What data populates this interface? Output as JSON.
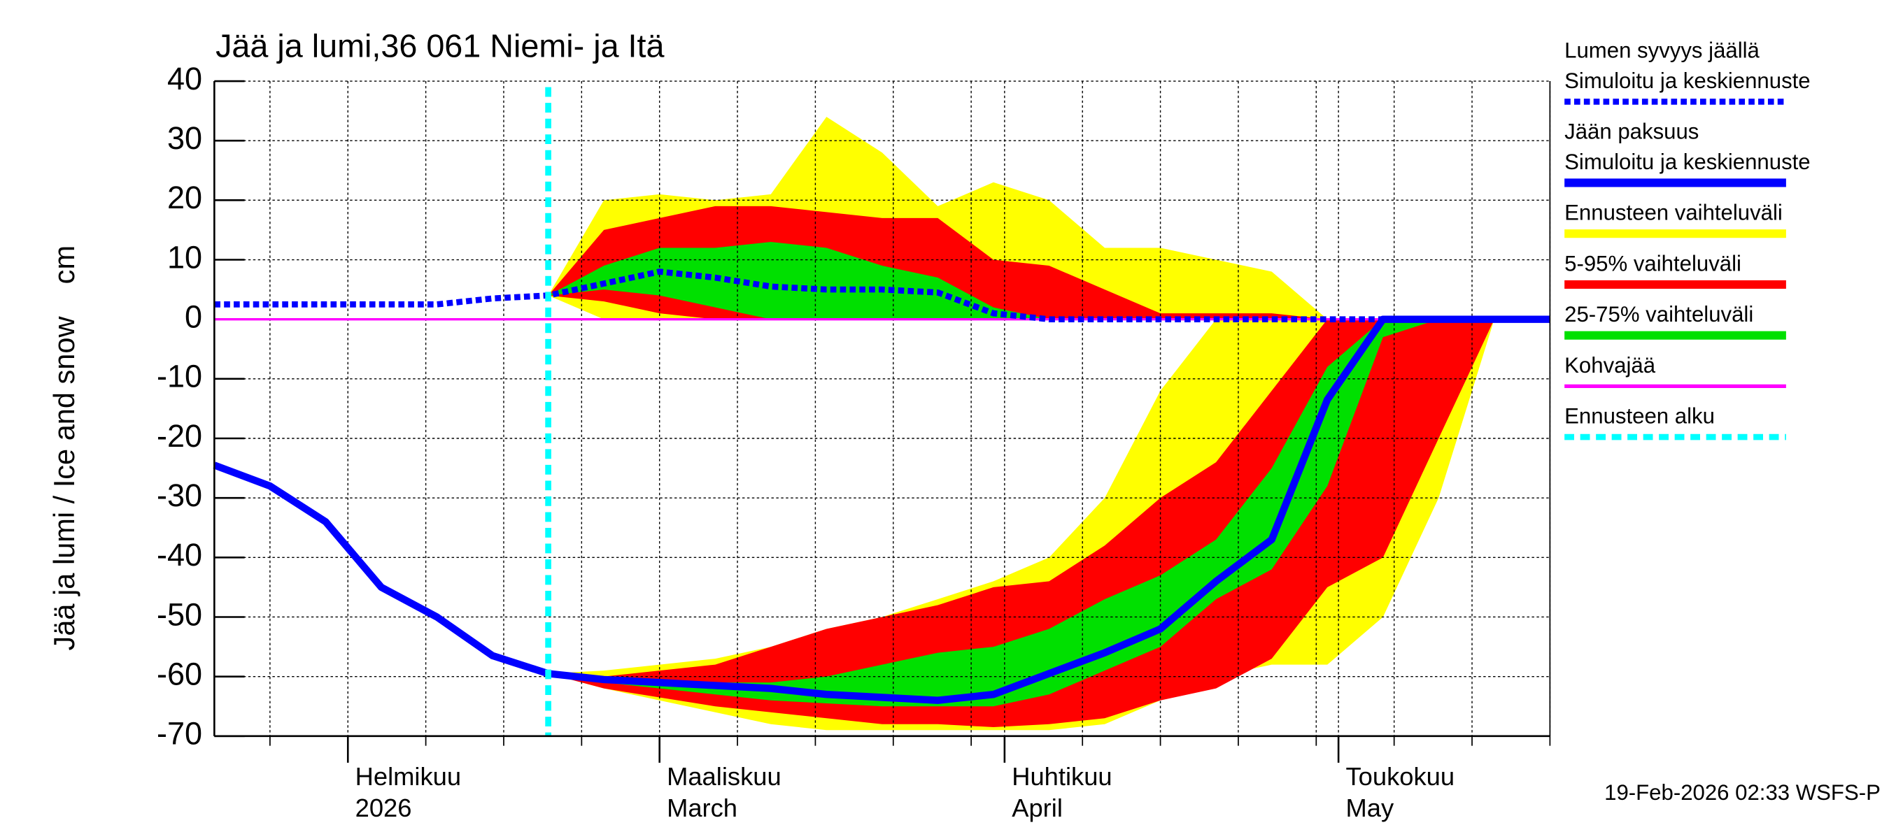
{
  "chart_data": {
    "type": "area",
    "title": "Jää ja lumi,36 061 Niemi- ja Itä",
    "ylabel": "Jää ja lumi / Ice and snow    cm",
    "footer": "19-Feb-2026 02:33 WSFS-P",
    "ylim": [
      -70,
      40
    ],
    "yticks": [
      40,
      30,
      20,
      10,
      0,
      -10,
      -20,
      -30,
      -40,
      -50,
      -60,
      -70
    ],
    "xlim": [
      0,
      120
    ],
    "xticks": [
      {
        "value": 12,
        "label": [
          "Helmikuu",
          "2026"
        ]
      },
      {
        "value": 40,
        "label": [
          "Maaliskuu",
          "March"
        ]
      },
      {
        "value": 71,
        "label": [
          "Huhtikuu",
          "April"
        ]
      },
      {
        "value": 101,
        "label": [
          "Toukokuu",
          "May"
        ]
      }
    ],
    "xminor": [
      5,
      12,
      19,
      26,
      33,
      40,
      47,
      54,
      61,
      68,
      71,
      78,
      85,
      92,
      99,
      101,
      106,
      113,
      120
    ],
    "grid": true,
    "forecast_start": 30,
    "x": [
      0,
      5,
      10,
      15,
      20,
      25,
      30,
      35,
      40,
      45,
      50,
      55,
      60,
      65,
      70,
      75,
      80,
      85,
      90,
      95,
      100,
      105,
      110,
      115,
      120
    ],
    "series": [
      {
        "name": [
          "Lumen syvyys jäällä",
          "Simuloitu ja keskiennuste"
        ],
        "color": "#0000ff",
        "style": "dotted",
        "values": [
          2.5,
          2.5,
          2.5,
          2.5,
          2.5,
          3.5,
          4,
          6,
          8,
          7,
          5.5,
          5,
          5,
          4.5,
          1,
          0,
          0,
          0,
          0,
          0,
          0,
          0,
          0,
          0,
          0
        ]
      },
      {
        "name": [
          "Jään paksuus",
          "Simuloitu ja keskiennuste"
        ],
        "color": "#0000ff",
        "style": "solid",
        "values": [
          -24.5,
          -28,
          -34,
          -45,
          -50,
          -56.5,
          -59.5,
          -60.5,
          -61,
          -61.5,
          -62,
          -63,
          -63.5,
          -64,
          -63,
          -59.5,
          -56,
          -52,
          -44,
          -37,
          -13.5,
          0,
          0,
          0,
          0
        ]
      },
      {
        "name": [
          "Ennusteen vaihteluväli"
        ],
        "color": "#ffff00",
        "style": "band",
        "snow_upper": [
          null,
          null,
          null,
          null,
          null,
          null,
          4,
          20,
          21,
          20,
          21,
          34,
          28,
          19,
          23,
          20,
          12,
          12,
          10,
          8,
          0,
          0,
          0,
          0,
          0
        ],
        "snow_lower": [
          null,
          null,
          null,
          null,
          null,
          null,
          4,
          0,
          0,
          0,
          0,
          0,
          0,
          0,
          0,
          0,
          0,
          0,
          0,
          0,
          0,
          0,
          0,
          0,
          0
        ],
        "ice_upper": [
          null,
          null,
          null,
          null,
          null,
          null,
          -59.5,
          -59,
          -58,
          -57,
          -55,
          -52,
          -50,
          -47,
          -44,
          -40,
          -30,
          -12,
          0,
          0,
          0,
          0,
          0,
          0,
          0
        ],
        "ice_lower": [
          null,
          null,
          null,
          null,
          null,
          null,
          -59.5,
          -62,
          -64,
          -66,
          -68,
          -69,
          -69,
          -69,
          -69,
          -69,
          -68,
          -64,
          -60,
          -58,
          -58,
          -50,
          -30,
          0,
          0
        ]
      },
      {
        "name": [
          "5-95% vaihteluväli"
        ],
        "color": "#ff0000",
        "style": "band",
        "snow_upper": [
          null,
          null,
          null,
          null,
          null,
          null,
          4,
          15,
          17,
          19,
          19,
          18,
          17,
          17,
          10,
          9,
          5,
          1,
          1,
          1,
          0,
          0,
          0,
          0,
          0
        ],
        "snow_lower": [
          null,
          null,
          null,
          null,
          null,
          null,
          4,
          3,
          1,
          0,
          0,
          0,
          0,
          0,
          0,
          0,
          0,
          0,
          0,
          0,
          0,
          0,
          0,
          0,
          0
        ],
        "ice_upper": [
          null,
          null,
          null,
          null,
          null,
          null,
          -59.5,
          -60,
          -59,
          -58,
          -55,
          -52,
          -50,
          -48,
          -45,
          -44,
          -38,
          -30,
          -24,
          -12,
          0,
          0,
          0,
          0,
          0
        ],
        "ice_lower": [
          null,
          null,
          null,
          null,
          null,
          null,
          -59.5,
          -62,
          -63.5,
          -65,
          -66,
          -67,
          -68,
          -68,
          -68.5,
          -68,
          -67,
          -64,
          -62,
          -57,
          -45,
          -40,
          -20,
          0,
          0
        ]
      },
      {
        "name": [
          "25-75% vaihteluväli"
        ],
        "color": "#00e000",
        "style": "band",
        "snow_upper": [
          null,
          null,
          null,
          null,
          null,
          null,
          4,
          9,
          12,
          12,
          13,
          12,
          9,
          7,
          2,
          0,
          0,
          0,
          0,
          0,
          0,
          0,
          0,
          0,
          0
        ],
        "snow_lower": [
          null,
          null,
          null,
          null,
          null,
          null,
          4,
          5,
          4,
          2,
          0,
          0,
          0,
          0,
          0,
          0,
          0,
          0,
          0,
          0,
          0,
          0,
          0,
          0,
          0
        ],
        "ice_upper": [
          null,
          null,
          null,
          null,
          null,
          null,
          -59.5,
          -60.5,
          -61,
          -61,
          -61,
          -60,
          -58,
          -56,
          -55,
          -52,
          -47,
          -43,
          -37,
          -25,
          -8,
          0,
          0,
          0,
          0
        ],
        "ice_lower": [
          null,
          null,
          null,
          null,
          null,
          null,
          -59.5,
          -61,
          -62,
          -63,
          -64,
          -64.5,
          -65,
          -65,
          -65,
          -63,
          -59,
          -55,
          -47,
          -42,
          -28,
          -3,
          0,
          0,
          0
        ]
      },
      {
        "name": [
          "Kohvajää"
        ],
        "color": "#ff00ff",
        "style": "solid-thin",
        "values": [
          0,
          0,
          0,
          0,
          0,
          0,
          0,
          0,
          0,
          0,
          0,
          0,
          0,
          0,
          0,
          0,
          0,
          0,
          0,
          0,
          0,
          0,
          0,
          0,
          0
        ]
      },
      {
        "name": [
          "Ennusteen alku"
        ],
        "color": "#00ffff",
        "style": "vline"
      }
    ]
  }
}
